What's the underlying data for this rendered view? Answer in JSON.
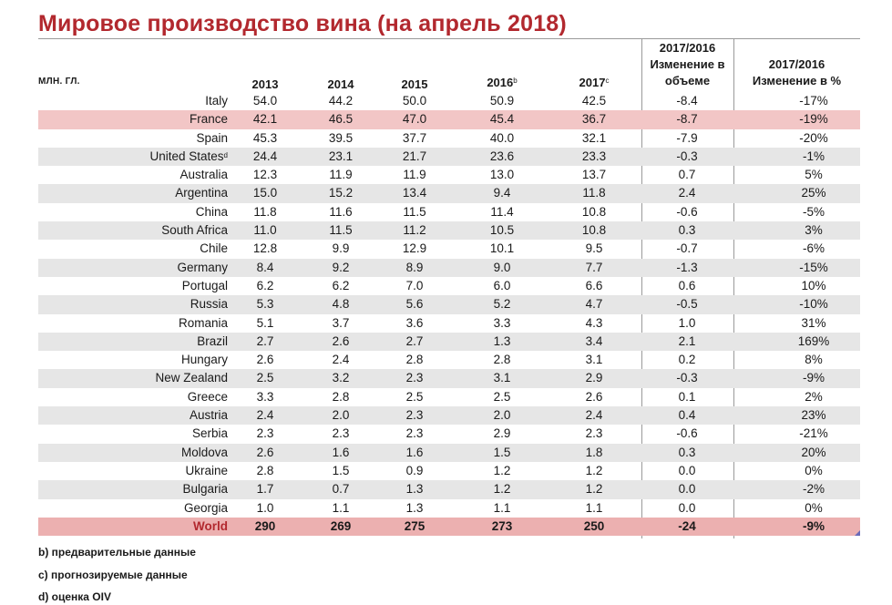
{
  "title": "Мировое производство вина (на апрель 2018)",
  "unit_label": "МЛН. ГЛ.",
  "headers": {
    "y2013": "2013",
    "y2014": "2014",
    "y2015": "2015",
    "y2016": "2016",
    "y2016_sup": "b",
    "y2017": "2017",
    "y2017_sup": "c",
    "vol_period": "2017/2016",
    "vol_label_1": "Изменение в",
    "vol_label_2": "объеме",
    "pct_period": "2017/2016",
    "pct_label": "Изменение в %"
  },
  "rows": [
    {
      "country": "Italy",
      "sup": "",
      "y2013": "54.0",
      "y2014": "44.2",
      "y2015": "50.0",
      "y2016": "50.9",
      "y2017": "42.5",
      "vol": "-8.4",
      "pct": "-17%"
    },
    {
      "country": "France",
      "sup": "",
      "y2013": "42.1",
      "y2014": "46.5",
      "y2015": "47.0",
      "y2016": "45.4",
      "y2017": "36.7",
      "vol": "-8.7",
      "pct": "-19%"
    },
    {
      "country": "Spain",
      "sup": "",
      "y2013": "45.3",
      "y2014": "39.5",
      "y2015": "37.7",
      "y2016": "40.0",
      "y2017": "32.1",
      "vol": "-7.9",
      "pct": "-20%"
    },
    {
      "country": "United States",
      "sup": "d",
      "y2013": "24.4",
      "y2014": "23.1",
      "y2015": "21.7",
      "y2016": "23.6",
      "y2017": "23.3",
      "vol": "-0.3",
      "pct": "-1%"
    },
    {
      "country": "Australia",
      "sup": "",
      "y2013": "12.3",
      "y2014": "11.9",
      "y2015": "11.9",
      "y2016": "13.0",
      "y2017": "13.7",
      "vol": "0.7",
      "pct": "5%"
    },
    {
      "country": "Argentina",
      "sup": "",
      "y2013": "15.0",
      "y2014": "15.2",
      "y2015": "13.4",
      "y2016": "9.4",
      "y2017": "11.8",
      "vol": "2.4",
      "pct": "25%"
    },
    {
      "country": "China",
      "sup": "",
      "y2013": "11.8",
      "y2014": "11.6",
      "y2015": "11.5",
      "y2016": "11.4",
      "y2017": "10.8",
      "vol": "-0.6",
      "pct": "-5%"
    },
    {
      "country": "South Africa",
      "sup": "",
      "y2013": "11.0",
      "y2014": "11.5",
      "y2015": "11.2",
      "y2016": "10.5",
      "y2017": "10.8",
      "vol": "0.3",
      "pct": "3%"
    },
    {
      "country": "Chile",
      "sup": "",
      "y2013": "12.8",
      "y2014": "9.9",
      "y2015": "12.9",
      "y2016": "10.1",
      "y2017": "9.5",
      "vol": "-0.7",
      "pct": "-6%"
    },
    {
      "country": "Germany",
      "sup": "",
      "y2013": "8.4",
      "y2014": "9.2",
      "y2015": "8.9",
      "y2016": "9.0",
      "y2017": "7.7",
      "vol": "-1.3",
      "pct": "-15%"
    },
    {
      "country": "Portugal",
      "sup": "",
      "y2013": "6.2",
      "y2014": "6.2",
      "y2015": "7.0",
      "y2016": "6.0",
      "y2017": "6.6",
      "vol": "0.6",
      "pct": "10%"
    },
    {
      "country": "Russia",
      "sup": "",
      "y2013": "5.3",
      "y2014": "4.8",
      "y2015": "5.6",
      "y2016": "5.2",
      "y2017": "4.7",
      "vol": "-0.5",
      "pct": "-10%"
    },
    {
      "country": "Romania",
      "sup": "",
      "y2013": "5.1",
      "y2014": "3.7",
      "y2015": "3.6",
      "y2016": "3.3",
      "y2017": "4.3",
      "vol": "1.0",
      "pct": "31%"
    },
    {
      "country": "Brazil",
      "sup": "",
      "y2013": "2.7",
      "y2014": "2.6",
      "y2015": "2.7",
      "y2016": "1.3",
      "y2017": "3.4",
      "vol": "2.1",
      "pct": "169%"
    },
    {
      "country": "Hungary",
      "sup": "",
      "y2013": "2.6",
      "y2014": "2.4",
      "y2015": "2.8",
      "y2016": "2.8",
      "y2017": "3.1",
      "vol": "0.2",
      "pct": "8%"
    },
    {
      "country": "New Zealand",
      "sup": "",
      "y2013": "2.5",
      "y2014": "3.2",
      "y2015": "2.3",
      "y2016": "3.1",
      "y2017": "2.9",
      "vol": "-0.3",
      "pct": "-9%"
    },
    {
      "country": "Greece",
      "sup": "",
      "y2013": "3.3",
      "y2014": "2.8",
      "y2015": "2.5",
      "y2016": "2.5",
      "y2017": "2.6",
      "vol": "0.1",
      "pct": "2%"
    },
    {
      "country": "Austria",
      "sup": "",
      "y2013": "2.4",
      "y2014": "2.0",
      "y2015": "2.3",
      "y2016": "2.0",
      "y2017": "2.4",
      "vol": "0.4",
      "pct": "23%"
    },
    {
      "country": "Serbia",
      "sup": "",
      "y2013": "2.3",
      "y2014": "2.3",
      "y2015": "2.3",
      "y2016": "2.9",
      "y2017": "2.3",
      "vol": "-0.6",
      "pct": "-21%"
    },
    {
      "country": "Moldova",
      "sup": "",
      "y2013": "2.6",
      "y2014": "1.6",
      "y2015": "1.6",
      "y2016": "1.5",
      "y2017": "1.8",
      "vol": "0.3",
      "pct": "20%"
    },
    {
      "country": "Ukraine",
      "sup": "",
      "y2013": "2.8",
      "y2014": "1.5",
      "y2015": "0.9",
      "y2016": "1.2",
      "y2017": "1.2",
      "vol": "0.0",
      "pct": "0%"
    },
    {
      "country": "Bulgaria",
      "sup": "",
      "y2013": "1.7",
      "y2014": "0.7",
      "y2015": "1.3",
      "y2016": "1.2",
      "y2017": "1.2",
      "vol": "0.0",
      "pct": "-2%"
    },
    {
      "country": "Georgia",
      "sup": "",
      "y2013": "1.0",
      "y2014": "1.1",
      "y2015": "1.3",
      "y2016": "1.1",
      "y2017": "1.1",
      "vol": "0.0",
      "pct": "0%"
    }
  ],
  "total": {
    "country": "World",
    "y2013": "290",
    "y2014": "269",
    "y2015": "275",
    "y2016": "273",
    "y2017": "250",
    "vol": "-24",
    "pct": "-9%"
  },
  "notes": [
    "b) предварительные данные",
    "c) прогнозируемые данные",
    "d) оценка OIV"
  ],
  "colors": {
    "title": "#b2282e",
    "row_shade": "#e6e6e6",
    "row_highlight": "#f2c6c6",
    "total_row": "#ecb0b0"
  }
}
